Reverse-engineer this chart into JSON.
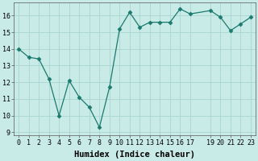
{
  "x": [
    0,
    1,
    2,
    3,
    4,
    5,
    6,
    7,
    8,
    9,
    10,
    11,
    12,
    13,
    14,
    15,
    16,
    17,
    19,
    20,
    21,
    22,
    23
  ],
  "y": [
    14.0,
    13.5,
    13.4,
    12.2,
    10.0,
    12.1,
    11.1,
    10.5,
    9.3,
    11.7,
    15.2,
    16.2,
    15.3,
    15.6,
    15.6,
    15.6,
    16.4,
    16.1,
    16.3,
    15.9,
    15.1,
    15.5,
    15.9
  ],
  "line_color": "#1a7a6e",
  "marker": "D",
  "marker_size": 2.5,
  "bg_color": "#c8ebe8",
  "grid_color": "#a8d5d0",
  "xlabel": "Humidex (Indice chaleur)",
  "xlabel_fontsize": 7.5,
  "tick_fontsize": 6.0,
  "ylim": [
    8.8,
    16.8
  ],
  "xlim": [
    -0.5,
    23.5
  ],
  "yticks": [
    9,
    10,
    11,
    12,
    13,
    14,
    15,
    16
  ],
  "xticks": [
    0,
    1,
    2,
    3,
    4,
    5,
    6,
    7,
    8,
    9,
    10,
    11,
    12,
    13,
    14,
    15,
    16,
    17,
    19,
    20,
    21,
    22,
    23
  ]
}
